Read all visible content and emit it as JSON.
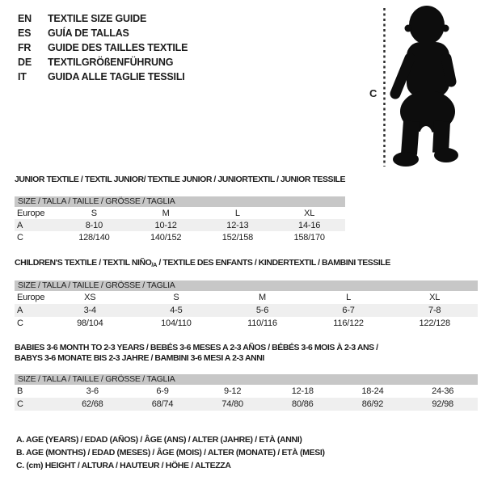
{
  "language_guide": {
    "items": [
      {
        "code": "EN",
        "label": "TEXTILE SIZE GUIDE"
      },
      {
        "code": "ES",
        "label": "GUÍA DE TALLAS"
      },
      {
        "code": "FR",
        "label": "GUIDE DES TAILLES TEXTILE"
      },
      {
        "code": "DE",
        "label": "TEXTILGRÖßENFÜHRUNG"
      },
      {
        "code": "IT",
        "label": "GUIDA ALLE TAGLIE TESSILI"
      }
    ]
  },
  "figure": {
    "icon": "baby-silhouette",
    "height_line_label": "C",
    "silhouette_color": "#0d0d0d"
  },
  "tables": [
    {
      "title": "JUNIOR TEXTILE / TEXTIL JUNIOR/ TEXTILE JUNIOR / JUNIORTEXTIL / JUNIOR TESSILE",
      "size_header": "SIZE / TALLA / TAILLE / GRÖSSE / TAGLIA",
      "rows": [
        {
          "label": "Europe",
          "cells": [
            "S",
            "M",
            "L",
            "XL"
          ],
          "shaded": false
        },
        {
          "label": "A",
          "cells": [
            "8-10",
            "10-12",
            "12-13",
            "14-16"
          ],
          "shaded": true
        },
        {
          "label": "C",
          "cells": [
            "128/140",
            "140/152",
            "152/158",
            "158/170"
          ],
          "shaded": false
        }
      ]
    },
    {
      "title_pre": "CHILDREN'S TEXTILE / TEXTIL NIÑO",
      "title_sub": "/A",
      "title_post": " / TEXTILE DES ENFANTS / KINDERTEXTIL / BAMBINI TESSILE",
      "size_header": "SIZE / TALLA / TAILLE / GRÖSSE / TAGLIA",
      "rows": [
        {
          "label": "Europe",
          "cells": [
            "XS",
            "S",
            "M",
            "L",
            "XL"
          ],
          "shaded": false
        },
        {
          "label": "A",
          "cells": [
            "3-4",
            "4-5",
            "5-6",
            "6-7",
            "7-8"
          ],
          "shaded": true
        },
        {
          "label": "C",
          "cells": [
            "98/104",
            "104/110",
            "110/116",
            "116/122",
            "122/128"
          ],
          "shaded": false
        }
      ]
    },
    {
      "title_line1": "BABIES 3-6 MONTH TO 2-3 YEARS / BEBÉS 3-6 MESES A 2-3 AÑOS / BÉBÉS 3-6 MOIS À 2-3 ANS /",
      "title_line2": "BABYS 3-6 MONATE BIS 2-3 JAHRE / BAMBINI 3-6 MESI A 2-3 ANNI",
      "size_header": "SIZE / TALLA / TAILLE / GRÖSSE / TAGLIA",
      "rows": [
        {
          "label": "B",
          "cells": [
            "3-6",
            "6-9",
            "9-12",
            "12-18",
            "18-24",
            "24-36"
          ],
          "shaded": false
        },
        {
          "label": "C",
          "cells": [
            "62/68",
            "68/74",
            "74/80",
            "80/86",
            "86/92",
            "92/98"
          ],
          "shaded": true
        }
      ]
    }
  ],
  "footnotes": {
    "lines": [
      "A. AGE (YEARS) / EDAD (AÑOS) / ÂGE (ANS) / ALTER (JAHRE) / ETÀ (ANNI)",
      "B. AGE (MONTHS) / EDAD (MESES) / ÂGE (MOIS) / ALTER (MONATE) / ETÀ (MESI)",
      "C. (cm) HEIGHT / ALTURA / HAUTEUR / HÖHE / ALTEZZA"
    ]
  },
  "colors": {
    "text": "#1c1c1c",
    "header_bar": "#c7c7c7",
    "row_shade": "#efefef",
    "silhouette": "#0d0d0d"
  }
}
